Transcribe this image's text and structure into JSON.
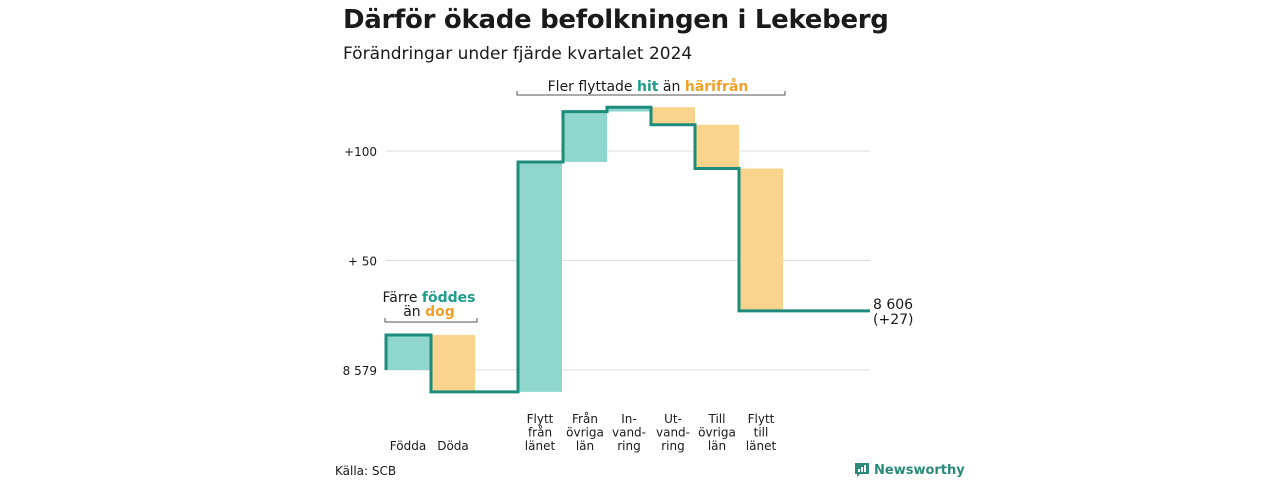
{
  "title": "Därför ökade befolkningen i Lekeberg",
  "subtitle": "Förändringar under fjärde kvartalet 2024",
  "source": "Källa: SCB",
  "brand": "Newsworthy",
  "colors": {
    "positive": "#8fd6cd",
    "negative": "#fad48c",
    "line": "#1e8c7d",
    "hit_text": "#1e9c8c",
    "away_text": "#f0a228",
    "grid": "#dddddd"
  },
  "annotations": {
    "top": {
      "pre": "Fler flyttade ",
      "hit": "hit",
      "mid": " än ",
      "away": "härifrån"
    },
    "left_line1": {
      "pre": "Färre ",
      "hit": "föddes"
    },
    "left_line2": {
      "pre": "än ",
      "away": "dog"
    }
  },
  "end_label": {
    "value": "8 606",
    "change": "(+27)"
  },
  "chart_data": {
    "type": "waterfall",
    "start_value": 8579,
    "end_value": 8606,
    "y_ticks": [
      {
        "value": 0,
        "label": "8 579"
      },
      {
        "value": 50,
        "label": "+ 50"
      },
      {
        "value": 100,
        "label": "+100"
      }
    ],
    "steps": [
      {
        "label": "Födda",
        "change": 16
      },
      {
        "label": "Döda",
        "change": -26
      },
      {
        "label": "Flytt\nfrån\nlänet",
        "change": 105
      },
      {
        "label": "Från\növriga\nlän",
        "change": 23
      },
      {
        "label": "In-\nvand-\nring",
        "change": 2
      },
      {
        "label": "Ut-\nvand-\nring",
        "change": -8
      },
      {
        "label": "Till\növriga\nlän",
        "change": -20
      },
      {
        "label": "Flytt\ntill\nlänet",
        "change": -65
      }
    ]
  }
}
